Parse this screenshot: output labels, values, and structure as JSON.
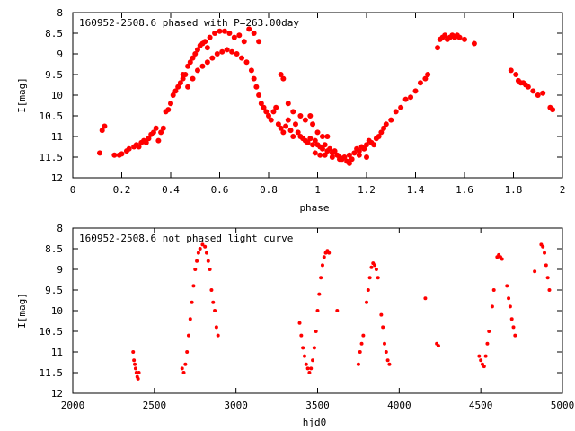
{
  "chart_data": [
    {
      "type": "scatter",
      "title": "160952-2508.6 phased with P=263.00day",
      "xlabel": "phase",
      "ylabel": "I[mag]",
      "xlim": [
        0,
        2
      ],
      "ylim": [
        12,
        8
      ],
      "y_inverted": true,
      "x_ticks": [
        0,
        0.2,
        0.4,
        0.6,
        0.8,
        1,
        1.2,
        1.4,
        1.6,
        1.8,
        2
      ],
      "x_tick_labels": [
        "0",
        "0.2",
        "0.4",
        "0.6",
        "0.8",
        "1",
        "1.2",
        "1.4",
        "1.6",
        "1.8",
        "2"
      ],
      "y_ticks": [
        8,
        8.5,
        9,
        9.5,
        10,
        10.5,
        11,
        11.5,
        12
      ],
      "y_tick_labels": [
        "8",
        "8.5",
        "9",
        "9.5",
        "10",
        "10.5",
        "11",
        "11.5",
        "12"
      ],
      "marker_color": "#ff0000",
      "points": [
        [
          0.11,
          11.4
        ],
        [
          0.12,
          10.85
        ],
        [
          0.13,
          10.75
        ],
        [
          0.17,
          11.45
        ],
        [
          0.19,
          11.45
        ],
        [
          0.2,
          11.42
        ],
        [
          0.22,
          11.35
        ],
        [
          0.23,
          11.3
        ],
        [
          0.25,
          11.25
        ],
        [
          0.26,
          11.2
        ],
        [
          0.27,
          11.25
        ],
        [
          0.28,
          11.15
        ],
        [
          0.29,
          11.1
        ],
        [
          0.3,
          11.15
        ],
        [
          0.31,
          11.05
        ],
        [
          0.32,
          10.95
        ],
        [
          0.33,
          10.9
        ],
        [
          0.34,
          10.8
        ],
        [
          0.35,
          11.1
        ],
        [
          0.36,
          10.9
        ],
        [
          0.37,
          10.8
        ],
        [
          0.38,
          10.4
        ],
        [
          0.39,
          10.35
        ],
        [
          0.4,
          10.2
        ],
        [
          0.41,
          10.0
        ],
        [
          0.42,
          9.9
        ],
        [
          0.43,
          9.8
        ],
        [
          0.44,
          9.7
        ],
        [
          0.45,
          9.6
        ],
        [
          0.46,
          9.5
        ],
        [
          0.47,
          9.3
        ],
        [
          0.48,
          9.2
        ],
        [
          0.49,
          9.1
        ],
        [
          0.5,
          9.0
        ],
        [
          0.51,
          8.9
        ],
        [
          0.52,
          8.8
        ],
        [
          0.53,
          8.75
        ],
        [
          0.54,
          8.7
        ],
        [
          0.55,
          8.85
        ],
        [
          0.56,
          8.6
        ],
        [
          0.58,
          8.5
        ],
        [
          0.6,
          8.45
        ],
        [
          0.62,
          8.45
        ],
        [
          0.64,
          8.5
        ],
        [
          0.66,
          8.6
        ],
        [
          0.68,
          8.55
        ],
        [
          0.7,
          8.7
        ],
        [
          0.72,
          8.4
        ],
        [
          0.74,
          8.5
        ],
        [
          0.76,
          8.7
        ],
        [
          0.45,
          9.5
        ],
        [
          0.47,
          9.8
        ],
        [
          0.49,
          9.6
        ],
        [
          0.51,
          9.4
        ],
        [
          0.53,
          9.3
        ],
        [
          0.55,
          9.2
        ],
        [
          0.57,
          9.1
        ],
        [
          0.59,
          9.0
        ],
        [
          0.61,
          8.95
        ],
        [
          0.63,
          8.9
        ],
        [
          0.65,
          8.95
        ],
        [
          0.67,
          9.0
        ],
        [
          0.69,
          9.1
        ],
        [
          0.71,
          9.2
        ],
        [
          0.73,
          9.4
        ],
        [
          0.74,
          9.6
        ],
        [
          0.75,
          9.8
        ],
        [
          0.76,
          10.0
        ],
        [
          0.77,
          10.2
        ],
        [
          0.78,
          10.3
        ],
        [
          0.79,
          10.4
        ],
        [
          0.8,
          10.5
        ],
        [
          0.81,
          10.6
        ],
        [
          0.82,
          10.4
        ],
        [
          0.83,
          10.3
        ],
        [
          0.84,
          10.7
        ],
        [
          0.85,
          10.8
        ],
        [
          0.86,
          10.9
        ],
        [
          0.87,
          10.75
        ],
        [
          0.88,
          10.6
        ],
        [
          0.89,
          10.85
        ],
        [
          0.9,
          11.0
        ],
        [
          0.91,
          10.7
        ],
        [
          0.92,
          10.9
        ],
        [
          0.93,
          11.0
        ],
        [
          0.94,
          11.05
        ],
        [
          0.95,
          11.1
        ],
        [
          0.96,
          11.15
        ],
        [
          0.97,
          11.05
        ],
        [
          0.98,
          11.2
        ],
        [
          0.99,
          11.1
        ],
        [
          1.0,
          11.2
        ],
        [
          1.01,
          11.25
        ],
        [
          1.02,
          11.3
        ],
        [
          1.03,
          11.2
        ],
        [
          1.04,
          11.35
        ],
        [
          1.05,
          11.3
        ],
        [
          1.06,
          11.4
        ],
        [
          1.07,
          11.35
        ],
        [
          1.08,
          11.45
        ],
        [
          1.09,
          11.5
        ],
        [
          1.1,
          11.55
        ],
        [
          1.11,
          11.5
        ],
        [
          1.12,
          11.6
        ],
        [
          1.13,
          11.65
        ],
        [
          1.14,
          11.55
        ],
        [
          1.15,
          11.4
        ],
        [
          1.16,
          11.3
        ],
        [
          1.17,
          11.35
        ],
        [
          1.18,
          11.25
        ],
        [
          1.19,
          11.3
        ],
        [
          1.2,
          11.2
        ],
        [
          1.21,
          11.1
        ],
        [
          1.22,
          11.15
        ],
        [
          1.23,
          11.2
        ],
        [
          1.24,
          11.05
        ],
        [
          1.25,
          11.0
        ],
        [
          1.26,
          10.9
        ],
        [
          1.27,
          10.8
        ],
        [
          1.28,
          10.7
        ],
        [
          1.3,
          10.6
        ],
        [
          1.32,
          10.4
        ],
        [
          1.34,
          10.3
        ],
        [
          1.36,
          10.1
        ],
        [
          1.38,
          10.05
        ],
        [
          1.4,
          9.9
        ],
        [
          1.42,
          9.7
        ],
        [
          1.44,
          9.6
        ],
        [
          1.45,
          9.5
        ],
        [
          0.85,
          9.5
        ],
        [
          0.86,
          9.6
        ],
        [
          0.88,
          10.2
        ],
        [
          0.9,
          10.4
        ],
        [
          0.93,
          10.5
        ],
        [
          0.95,
          10.6
        ],
        [
          0.97,
          10.5
        ],
        [
          0.98,
          10.7
        ],
        [
          1.0,
          10.9
        ],
        [
          1.02,
          11.0
        ],
        [
          1.04,
          11.0
        ],
        [
          0.99,
          11.4
        ],
        [
          1.01,
          11.45
        ],
        [
          1.03,
          11.45
        ],
        [
          1.06,
          11.5
        ],
        [
          1.09,
          11.55
        ],
        [
          1.13,
          11.45
        ],
        [
          1.17,
          11.45
        ],
        [
          1.2,
          11.5
        ],
        [
          1.49,
          8.85
        ],
        [
          1.5,
          8.65
        ],
        [
          1.51,
          8.6
        ],
        [
          1.52,
          8.55
        ],
        [
          1.53,
          8.65
        ],
        [
          1.54,
          8.6
        ],
        [
          1.55,
          8.55
        ],
        [
          1.56,
          8.6
        ],
        [
          1.57,
          8.55
        ],
        [
          1.58,
          8.6
        ],
        [
          1.6,
          8.65
        ],
        [
          1.64,
          8.75
        ],
        [
          1.79,
          9.4
        ],
        [
          1.81,
          9.5
        ],
        [
          1.82,
          9.65
        ],
        [
          1.83,
          9.7
        ],
        [
          1.84,
          9.7
        ],
        [
          1.85,
          9.75
        ],
        [
          1.86,
          9.8
        ],
        [
          1.88,
          9.9
        ],
        [
          1.9,
          10.0
        ],
        [
          1.92,
          9.95
        ],
        [
          1.95,
          10.3
        ],
        [
          1.96,
          10.35
        ]
      ]
    },
    {
      "type": "scatter",
      "title": "160952-2508.6 not phased light curve",
      "xlabel": "hjd0",
      "ylabel": "I[mag]",
      "xlim": [
        2000,
        5000
      ],
      "ylim": [
        12,
        8
      ],
      "y_inverted": true,
      "x_ticks": [
        2000,
        2500,
        3000,
        3500,
        4000,
        4500,
        5000
      ],
      "x_tick_labels": [
        "2000",
        "2500",
        "3000",
        "3500",
        "4000",
        "4500",
        "5000"
      ],
      "y_ticks": [
        8,
        8.5,
        9,
        9.5,
        10,
        10.5,
        11,
        11.5,
        12
      ],
      "y_tick_labels": [
        "8",
        "8.5",
        "9",
        "9.5",
        "10",
        "10.5",
        "11",
        "11.5",
        "12"
      ],
      "marker_color": "#ff0000",
      "points": [
        [
          2370,
          11.0
        ],
        [
          2375,
          11.2
        ],
        [
          2380,
          11.3
        ],
        [
          2385,
          11.4
        ],
        [
          2390,
          11.5
        ],
        [
          2395,
          11.6
        ],
        [
          2400,
          11.65
        ],
        [
          2405,
          11.5
        ],
        [
          2670,
          11.4
        ],
        [
          2680,
          11.5
        ],
        [
          2690,
          11.3
        ],
        [
          2700,
          11.0
        ],
        [
          2710,
          10.6
        ],
        [
          2720,
          10.2
        ],
        [
          2730,
          9.8
        ],
        [
          2740,
          9.4
        ],
        [
          2750,
          9.0
        ],
        [
          2760,
          8.8
        ],
        [
          2770,
          8.6
        ],
        [
          2780,
          8.5
        ],
        [
          2795,
          8.4
        ],
        [
          2810,
          8.45
        ],
        [
          2820,
          8.6
        ],
        [
          2830,
          8.8
        ],
        [
          2840,
          9.0
        ],
        [
          2850,
          9.5
        ],
        [
          2860,
          9.8
        ],
        [
          2870,
          10.0
        ],
        [
          2880,
          10.4
        ],
        [
          2890,
          10.6
        ],
        [
          3390,
          10.3
        ],
        [
          3400,
          10.6
        ],
        [
          3410,
          10.9
        ],
        [
          3420,
          11.1
        ],
        [
          3430,
          11.3
        ],
        [
          3440,
          11.4
        ],
        [
          3450,
          11.5
        ],
        [
          3460,
          11.4
        ],
        [
          3470,
          11.2
        ],
        [
          3480,
          10.9
        ],
        [
          3490,
          10.5
        ],
        [
          3500,
          10.0
        ],
        [
          3510,
          9.6
        ],
        [
          3520,
          9.2
        ],
        [
          3530,
          8.9
        ],
        [
          3540,
          8.7
        ],
        [
          3550,
          8.6
        ],
        [
          3560,
          8.55
        ],
        [
          3570,
          8.6
        ],
        [
          3620,
          10.0
        ],
        [
          3750,
          11.3
        ],
        [
          3760,
          11.0
        ],
        [
          3770,
          10.8
        ],
        [
          3780,
          10.6
        ],
        [
          3800,
          9.8
        ],
        [
          3810,
          9.5
        ],
        [
          3820,
          9.2
        ],
        [
          3830,
          8.95
        ],
        [
          3840,
          8.85
        ],
        [
          3850,
          8.9
        ],
        [
          3860,
          9.0
        ],
        [
          3870,
          9.2
        ],
        [
          3890,
          10.1
        ],
        [
          3900,
          10.4
        ],
        [
          3910,
          10.8
        ],
        [
          3920,
          11.0
        ],
        [
          3930,
          11.2
        ],
        [
          3940,
          11.3
        ],
        [
          4160,
          9.7
        ],
        [
          4230,
          10.8
        ],
        [
          4240,
          10.85
        ],
        [
          4490,
          11.1
        ],
        [
          4500,
          11.2
        ],
        [
          4510,
          11.3
        ],
        [
          4520,
          11.35
        ],
        [
          4530,
          11.1
        ],
        [
          4540,
          10.8
        ],
        [
          4550,
          10.5
        ],
        [
          4570,
          9.9
        ],
        [
          4580,
          9.5
        ],
        [
          4600,
          8.7
        ],
        [
          4610,
          8.65
        ],
        [
          4620,
          8.7
        ],
        [
          4630,
          8.75
        ],
        [
          4660,
          9.4
        ],
        [
          4670,
          9.7
        ],
        [
          4680,
          9.9
        ],
        [
          4690,
          10.2
        ],
        [
          4700,
          10.4
        ],
        [
          4710,
          10.6
        ],
        [
          4830,
          9.05
        ],
        [
          4870,
          8.4
        ],
        [
          4880,
          8.45
        ],
        [
          4890,
          8.6
        ],
        [
          4900,
          8.9
        ],
        [
          4910,
          9.2
        ],
        [
          4920,
          9.5
        ]
      ]
    }
  ]
}
